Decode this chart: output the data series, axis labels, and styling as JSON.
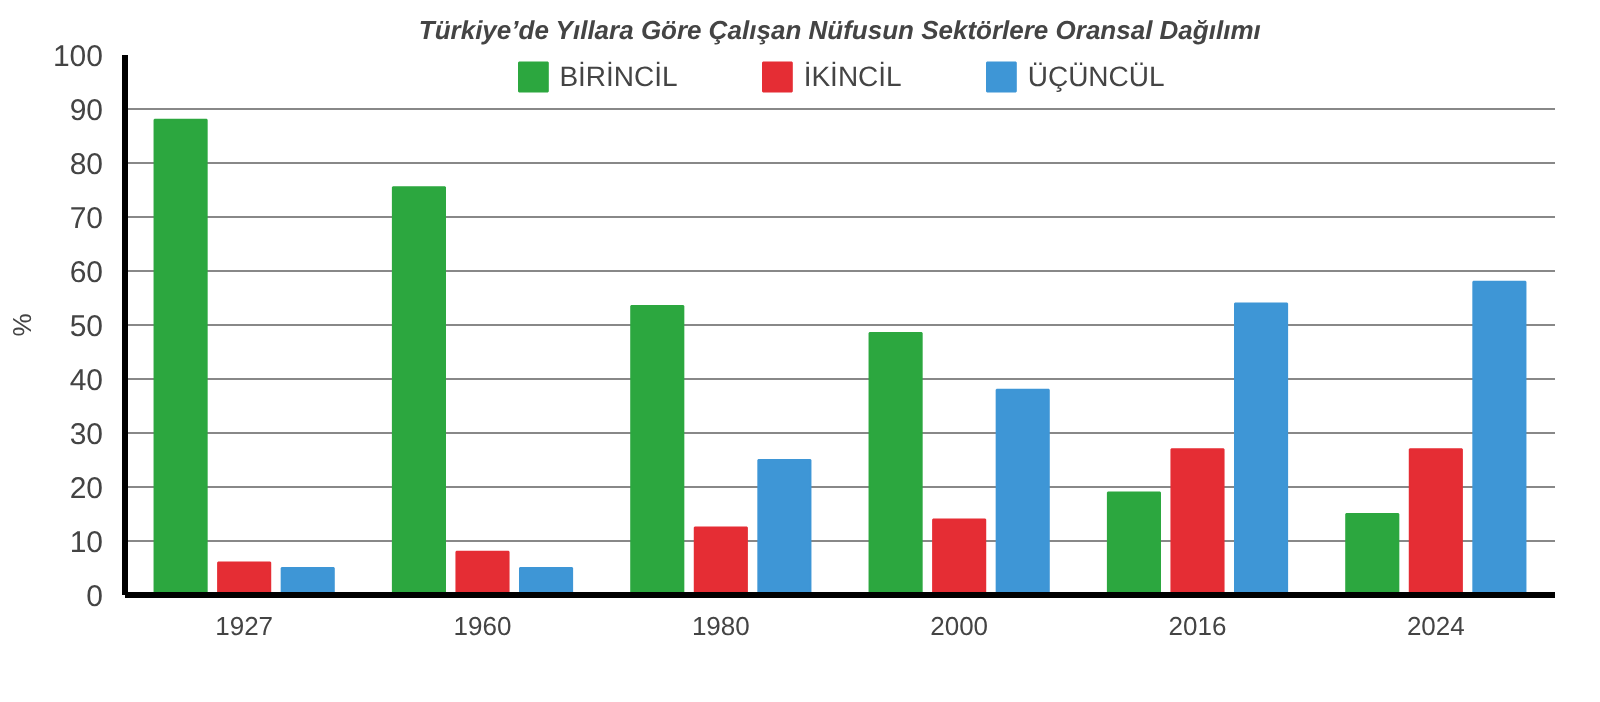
{
  "chart_data": {
    "type": "bar",
    "title": "Türkiye’de Yıllara Göre Çalışan Nüfusun Sektörlere Oransal Dağılımı",
    "ylabel": "%",
    "categories": [
      "1927",
      "1960",
      "1980",
      "2000",
      "2016",
      "2024"
    ],
    "series": [
      {
        "name": "BİRİNCİL",
        "color": "#2ca73f",
        "values": [
          88,
          75.5,
          53.5,
          48.5,
          19,
          15
        ]
      },
      {
        "name": "İKİNCİL",
        "color": "#e52d34",
        "values": [
          6,
          8,
          12.5,
          14,
          27,
          27
        ]
      },
      {
        "name": "ÜÇÜNCÜL",
        "color": "#3e96d6",
        "values": [
          5,
          5,
          25,
          38,
          54,
          58
        ]
      }
    ],
    "ylim": [
      0,
      100
    ],
    "yticks": [
      0,
      10,
      20,
      30,
      40,
      50,
      60,
      70,
      80,
      90,
      100
    ],
    "grid": "y",
    "legend": "top"
  }
}
